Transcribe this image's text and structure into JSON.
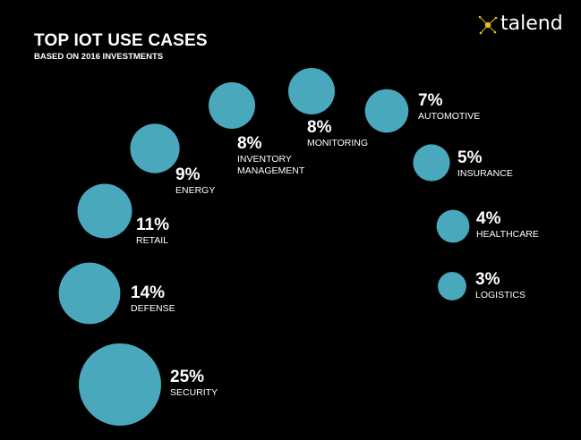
{
  "header": {
    "title": "TOP IOT USE CASES",
    "subtitle": "BASED ON 2016 INVESTMENTS"
  },
  "logo": {
    "text": "talend",
    "icon": "talend-star-icon",
    "accent_color": "#e8c21a"
  },
  "colors": {
    "background": "#000000",
    "bubble": "#4aa8bd",
    "text": "#ffffff"
  },
  "chart_data": {
    "type": "bubble",
    "title": "TOP IOT USE CASES",
    "subtitle": "BASED ON 2016 INVESTMENTS",
    "unit": "%",
    "categories": [
      "Security",
      "Defense",
      "Retail",
      "Energy",
      "Inventory Management",
      "Monitoring",
      "Automotive",
      "Insurance",
      "Healthcare",
      "Logistics"
    ],
    "values": [
      25,
      14,
      11,
      9,
      8,
      8,
      7,
      5,
      4,
      3
    ],
    "items": [
      {
        "label": "SECURITY",
        "value": 25,
        "display": "25%"
      },
      {
        "label": "DEFENSE",
        "value": 14,
        "display": "14%"
      },
      {
        "label": "RETAIL",
        "value": 11,
        "display": "11%"
      },
      {
        "label": "ENERGY",
        "value": 9,
        "display": "9%"
      },
      {
        "label": "INVENTORY\nMANAGEMENT",
        "value": 8,
        "display": "8%"
      },
      {
        "label": "MONITORING",
        "value": 8,
        "display": "8%"
      },
      {
        "label": "AUTOMOTIVE",
        "value": 7,
        "display": "7%"
      },
      {
        "label": "INSURANCE",
        "value": 5,
        "display": "5%"
      },
      {
        "label": "HEALTHCARE",
        "value": 4,
        "display": "4%"
      },
      {
        "label": "LOGISTICS",
        "value": 3,
        "display": "3%"
      }
    ]
  }
}
